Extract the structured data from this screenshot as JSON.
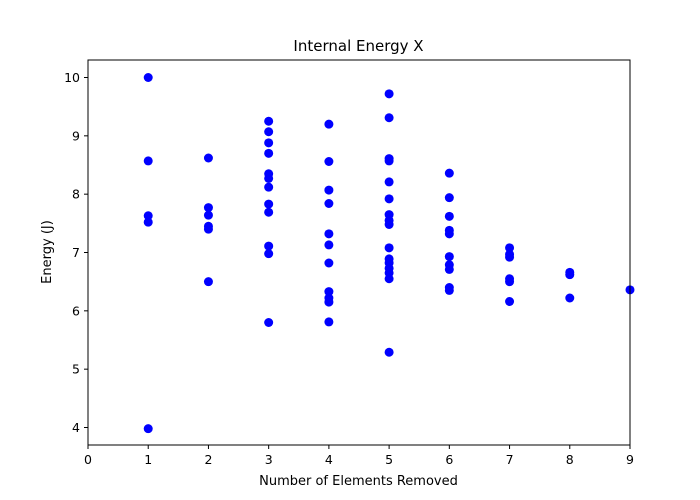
{
  "chart_data": {
    "type": "scatter",
    "title": "Internal Energy X",
    "xlabel": "Number of Elements Removed",
    "ylabel": "Energy (J)",
    "xlim": [
      0,
      9
    ],
    "ylim": [
      3.7,
      10.3
    ],
    "xticks": [
      "0",
      "1",
      "2",
      "3",
      "4",
      "5",
      "6",
      "7",
      "8",
      "9"
    ],
    "yticks": [
      "4",
      "5",
      "6",
      "7",
      "8",
      "9",
      "10"
    ],
    "grid": false,
    "marker_color": "#0000ff",
    "series": [
      {
        "points": [
          [
            1,
            10.0
          ],
          [
            1,
            8.57
          ],
          [
            1,
            7.63
          ],
          [
            1,
            7.52
          ],
          [
            1,
            3.98
          ],
          [
            2,
            8.62
          ],
          [
            2,
            7.77
          ],
          [
            2,
            7.64
          ],
          [
            2,
            7.45
          ],
          [
            2,
            7.4
          ],
          [
            2,
            6.5
          ],
          [
            3,
            9.25
          ],
          [
            3,
            9.07
          ],
          [
            3,
            8.88
          ],
          [
            3,
            8.7
          ],
          [
            3,
            8.35
          ],
          [
            3,
            8.27
          ],
          [
            3,
            8.12
          ],
          [
            3,
            7.83
          ],
          [
            3,
            7.69
          ],
          [
            3,
            7.11
          ],
          [
            3,
            6.98
          ],
          [
            3,
            5.8
          ],
          [
            4,
            9.2
          ],
          [
            4,
            8.56
          ],
          [
            4,
            8.07
          ],
          [
            4,
            7.84
          ],
          [
            4,
            7.32
          ],
          [
            4,
            7.13
          ],
          [
            4,
            6.82
          ],
          [
            4,
            6.33
          ],
          [
            4,
            6.22
          ],
          [
            4,
            6.15
          ],
          [
            4,
            5.81
          ],
          [
            5,
            9.72
          ],
          [
            5,
            9.31
          ],
          [
            5,
            8.61
          ],
          [
            5,
            8.57
          ],
          [
            5,
            8.21
          ],
          [
            5,
            7.92
          ],
          [
            5,
            7.65
          ],
          [
            5,
            7.55
          ],
          [
            5,
            7.48
          ],
          [
            5,
            7.08
          ],
          [
            5,
            6.89
          ],
          [
            5,
            6.82
          ],
          [
            5,
            6.73
          ],
          [
            5,
            6.65
          ],
          [
            5,
            6.55
          ],
          [
            5,
            5.29
          ],
          [
            6,
            8.36
          ],
          [
            6,
            7.94
          ],
          [
            6,
            7.62
          ],
          [
            6,
            7.38
          ],
          [
            6,
            7.32
          ],
          [
            6,
            6.93
          ],
          [
            6,
            6.79
          ],
          [
            6,
            6.71
          ],
          [
            6,
            6.4
          ],
          [
            6,
            6.35
          ],
          [
            7,
            7.08
          ],
          [
            7,
            6.97
          ],
          [
            7,
            6.92
          ],
          [
            7,
            6.55
          ],
          [
            7,
            6.5
          ],
          [
            7,
            6.16
          ],
          [
            8,
            6.66
          ],
          [
            8,
            6.62
          ],
          [
            8,
            6.22
          ],
          [
            9,
            6.36
          ]
        ]
      }
    ]
  }
}
